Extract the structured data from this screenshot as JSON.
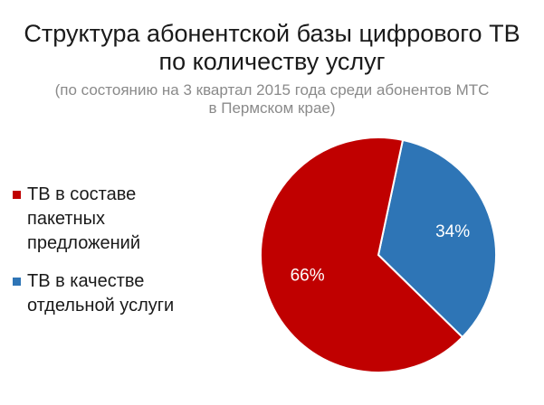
{
  "header": {
    "title_line1": "Структура абонентской базы цифрового ТВ",
    "title_line2": "по количеству услуг",
    "subtitle_line1": "(по состоянию на 3 квартал 2015 года среди абонентов МТС",
    "subtitle_line2": "в Пермском крае)"
  },
  "chart_data": {
    "type": "pie",
    "title": "Структура абонентской базы цифрового ТВ по количеству услуг",
    "subtitle": "(по состоянию на 3 квартал 2015 года среди абонентов МТС в Пермском крае)",
    "legend_position": "left",
    "slices": [
      {
        "label_lines": [
          "ТВ в составе",
          "пакетных",
          "предложений"
        ],
        "value": 66,
        "data_label": "66%",
        "color": "#c00000"
      },
      {
        "label_lines": [
          "ТВ в качестве",
          "отдельной услуги"
        ],
        "value": 34,
        "data_label": "34%",
        "color": "#2e75b6"
      }
    ]
  }
}
